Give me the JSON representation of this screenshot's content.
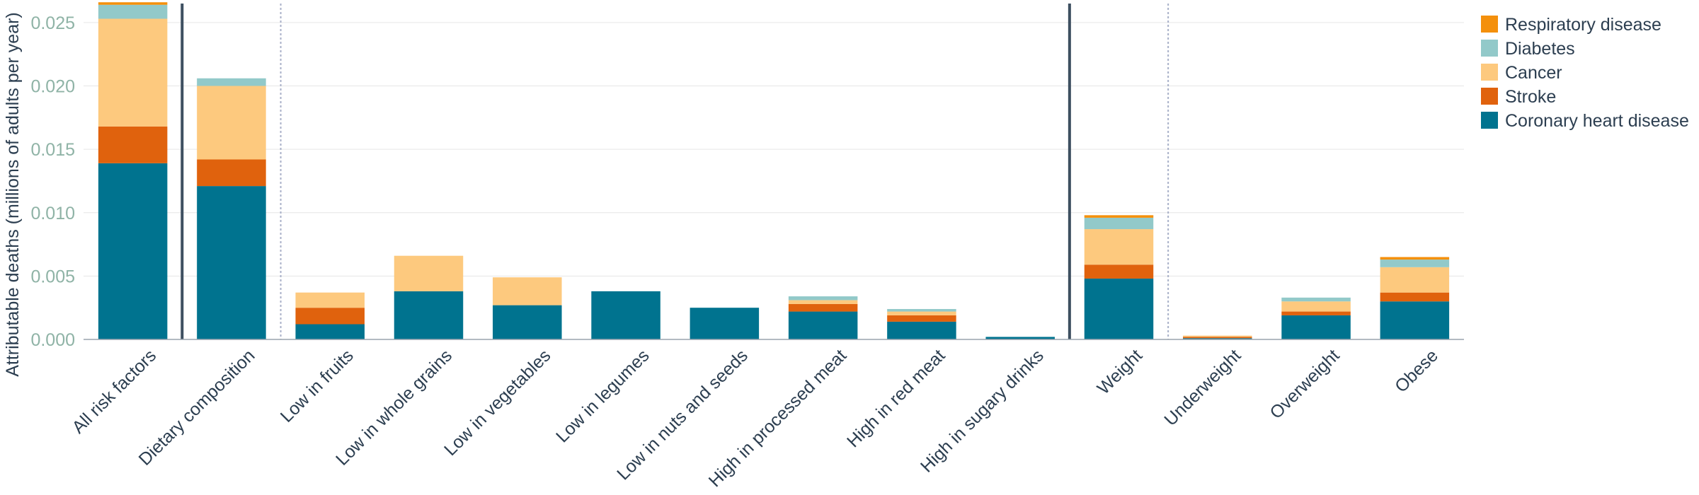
{
  "chart_data": {
    "type": "bar",
    "stacked": true,
    "ylabel": "Attributable deaths (millions of adults per year)",
    "xlabel": "",
    "ylim": [
      0,
      0.0265
    ],
    "yticks": [
      "0.000",
      "0.005",
      "0.010",
      "0.015",
      "0.020",
      "0.025"
    ],
    "categories": [
      "All risk factors",
      "Dietary composition",
      "Low in fruits",
      "Low in whole grains",
      "Low in vegetables",
      "Low in legumes",
      "Low in nuts and seeds",
      "High in processed meat",
      "High in red meat",
      "High in sugary drinks",
      "Weight",
      "Underweight",
      "Overweight",
      "Obese"
    ],
    "series": [
      {
        "name": "Coronary heart disease",
        "color": "#00738f",
        "values": [
          0.0139,
          0.0121,
          0.0012,
          0.0038,
          0.0027,
          0.0038,
          0.0025,
          0.0022,
          0.0014,
          0.0002,
          0.0048,
          0.0001,
          0.0019,
          0.003
        ]
      },
      {
        "name": "Stroke",
        "color": "#e0620d",
        "values": [
          0.0029,
          0.0021,
          0.0013,
          0.0,
          0.0,
          0.0,
          0.0,
          0.0006,
          0.0005,
          0.0,
          0.0011,
          0.0001,
          0.0003,
          0.0007
        ]
      },
      {
        "name": "Cancer",
        "color": "#fdc97e",
        "values": [
          0.0085,
          0.0058,
          0.0012,
          0.0028,
          0.0022,
          0.0,
          0.0,
          0.0003,
          0.0003,
          0.0,
          0.0028,
          0.0001,
          0.0008,
          0.002
        ]
      },
      {
        "name": "Diabetes",
        "color": "#92c9c9",
        "values": [
          0.0011,
          0.0006,
          0.0,
          0.0,
          0.0,
          0.0,
          0.0,
          0.0003,
          0.0002,
          0.0,
          0.0009,
          0.0,
          0.0003,
          0.0006
        ]
      },
      {
        "name": "Respiratory disease",
        "color": "#f4900c",
        "values": [
          0.0002,
          0.0,
          0.0,
          0.0,
          0.0,
          0.0,
          0.0,
          0.0,
          0.0,
          0.0,
          0.0002,
          0.0,
          0.0,
          0.0002
        ]
      }
    ],
    "legend_position": "right",
    "legend_order": [
      "Respiratory disease",
      "Diabetes",
      "Cancer",
      "Stroke",
      "Coronary heart disease"
    ],
    "separators": [
      {
        "after_category": "All risk factors",
        "style": "solid"
      },
      {
        "after_category": "Dietary composition",
        "style": "dotted"
      },
      {
        "after_category": "High in sugary drinks",
        "style": "solid"
      },
      {
        "after_category": "Weight",
        "style": "dotted"
      }
    ],
    "grid": true
  }
}
